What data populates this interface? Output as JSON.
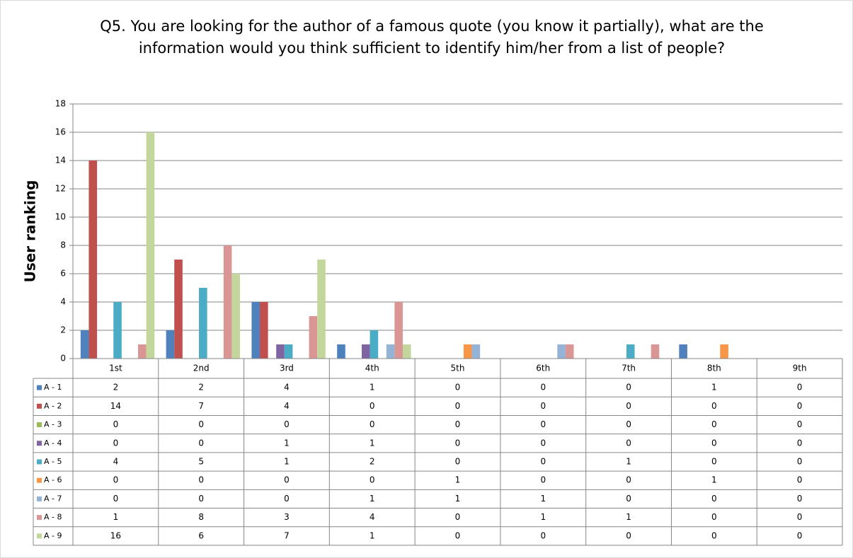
{
  "chart_data": {
    "type": "bar",
    "title": "Q5. You are looking for the author of a famous quote (you know it partially), what are the information would you think sufficient to identify him/her from a list of people?",
    "y_label": "User ranking",
    "categories": [
      "1st",
      "2nd",
      "3rd",
      "4th",
      "5th",
      "6th",
      "7th",
      "8th",
      "9th"
    ],
    "series": [
      {
        "name": "A - 1",
        "color": "#4f81bd",
        "values": [
          2,
          2,
          4,
          1,
          0,
          0,
          0,
          1,
          0
        ]
      },
      {
        "name": "A - 2",
        "color": "#c0504d",
        "values": [
          14,
          7,
          4,
          0,
          0,
          0,
          0,
          0,
          0
        ]
      },
      {
        "name": "A - 3",
        "color": "#9bbb59",
        "values": [
          0,
          0,
          0,
          0,
          0,
          0,
          0,
          0,
          0
        ]
      },
      {
        "name": "A - 4",
        "color": "#8064a2",
        "values": [
          0,
          0,
          1,
          1,
          0,
          0,
          0,
          0,
          0
        ]
      },
      {
        "name": "A - 5",
        "color": "#4bacc6",
        "values": [
          4,
          5,
          1,
          2,
          0,
          0,
          1,
          0,
          0
        ]
      },
      {
        "name": "A - 6",
        "color": "#f79646",
        "values": [
          0,
          0,
          0,
          0,
          1,
          0,
          0,
          1,
          0
        ]
      },
      {
        "name": "A - 7",
        "color": "#95b3d7",
        "values": [
          0,
          0,
          0,
          1,
          1,
          1,
          0,
          0,
          0
        ]
      },
      {
        "name": "A - 8",
        "color": "#d99694",
        "values": [
          1,
          8,
          3,
          4,
          0,
          1,
          1,
          0,
          0
        ]
      },
      {
        "name": "A - 9",
        "color": "#c3d69b",
        "values": [
          16,
          6,
          7,
          1,
          0,
          0,
          0,
          0,
          0
        ]
      }
    ],
    "ylim": [
      0,
      18
    ],
    "yticks": [
      0,
      2,
      4,
      6,
      8,
      10,
      12,
      14,
      16,
      18
    ],
    "grid": true
  }
}
